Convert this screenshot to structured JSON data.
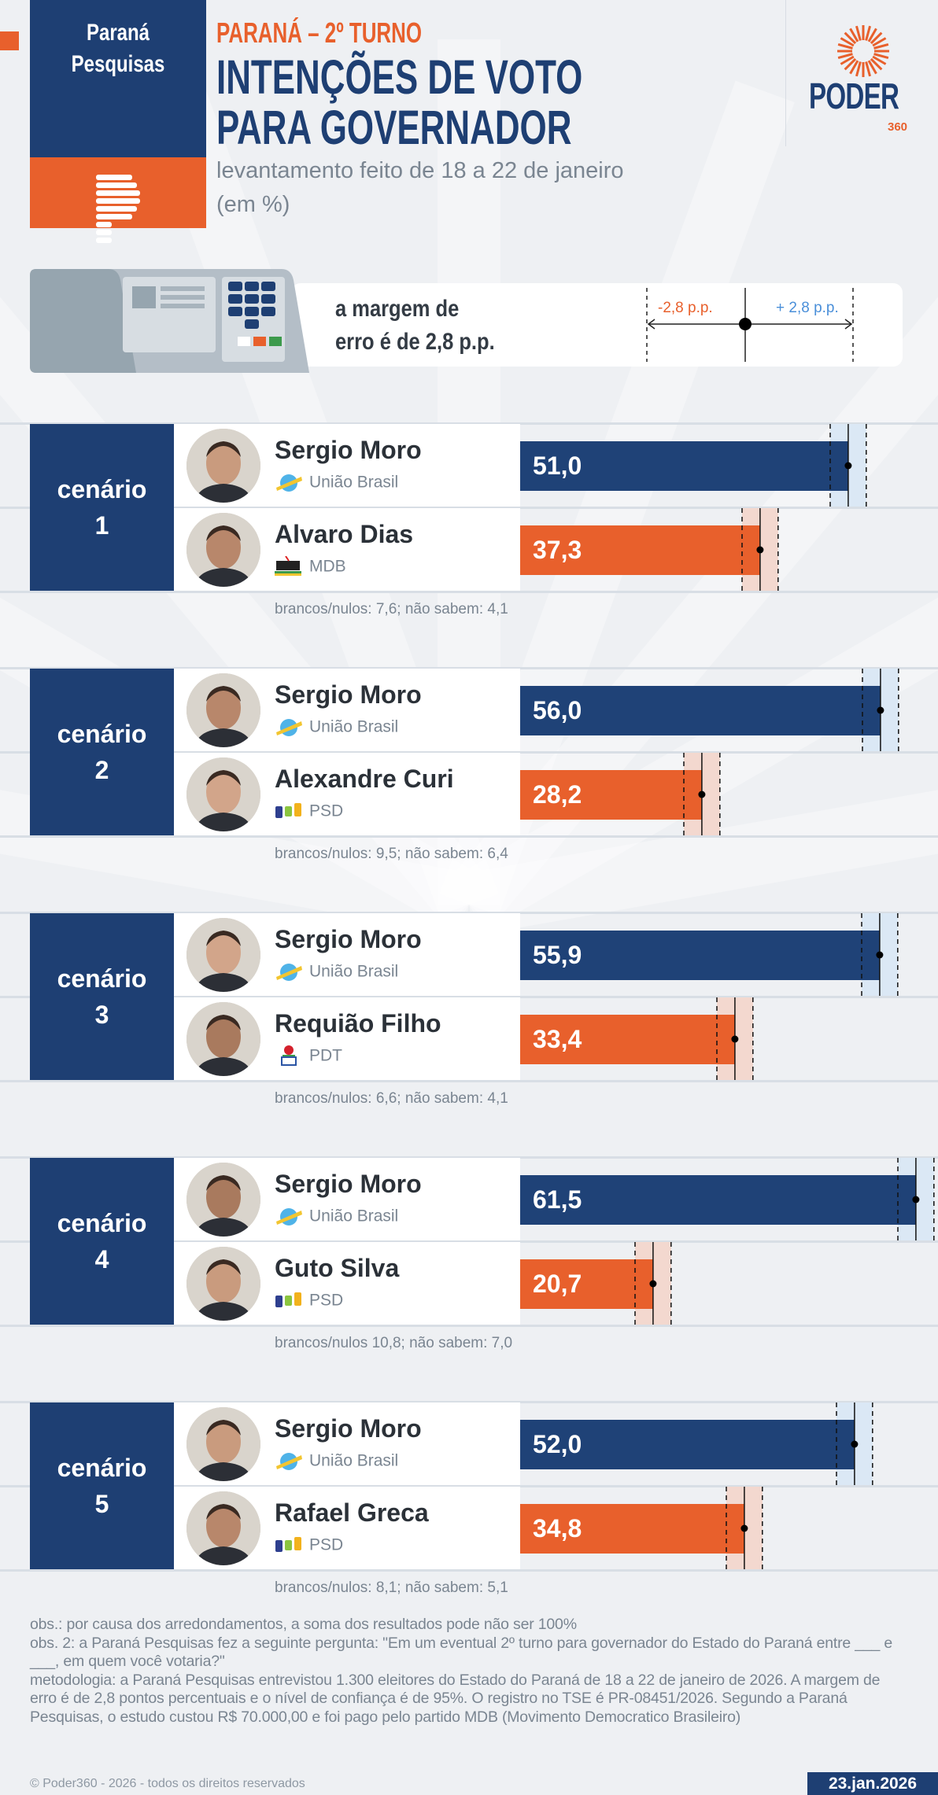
{
  "header": {
    "source_name": [
      "Paraná",
      "Pesquisas"
    ],
    "kicker": "PARANÁ – 2º TURNO",
    "title": [
      "INTENÇÕES DE VOTO",
      "PARA GOVERNADOR"
    ],
    "subtitle": [
      "levantamento feito de 18 a 22 de janeiro",
      "(em %)"
    ],
    "logo": {
      "text": "PODER",
      "sub": "360"
    }
  },
  "margin_box": {
    "text": [
      "a margem de",
      "erro é de 2,8 p.p."
    ],
    "minus_label": "-2,8 p.p.",
    "plus_label": "+ 2,8 p.p."
  },
  "chart_data": {
    "type": "bar",
    "orientation": "horizontal",
    "unit": "%",
    "margin_of_error": 2.8,
    "colors": {
      "first": "#1f4277",
      "second": "#e8602c",
      "first_band": "#dbe8f5",
      "second_band": "#f3d8cf"
    },
    "scenarios": [
      {
        "label": "cenário",
        "number": "1",
        "others": "brancos/nulos: 7,6; não sabem: 4,1",
        "candidates": [
          {
            "name": "Sergio Moro",
            "party": "União Brasil",
            "party_icon": "uniao-brasil-logo",
            "value": 51.0,
            "label": "51,0"
          },
          {
            "name": "Alvaro Dias",
            "party": "MDB",
            "party_icon": "mdb-logo",
            "value": 37.3,
            "label": "37,3"
          }
        ]
      },
      {
        "label": "cenário",
        "number": "2",
        "others": "brancos/nulos: 9,5; não sabem: 6,4",
        "candidates": [
          {
            "name": "Sergio Moro",
            "party": "União Brasil",
            "party_icon": "uniao-brasil-logo",
            "value": 56.0,
            "label": "56,0"
          },
          {
            "name": "Alexandre Curi",
            "party": "PSD",
            "party_icon": "psd-logo",
            "value": 28.2,
            "label": "28,2"
          }
        ]
      },
      {
        "label": "cenário",
        "number": "3",
        "others": "brancos/nulos: 6,6; não sabem: 4,1",
        "candidates": [
          {
            "name": "Sergio Moro",
            "party": "União Brasil",
            "party_icon": "uniao-brasil-logo",
            "value": 55.9,
            "label": "55,9"
          },
          {
            "name": "Requião Filho",
            "party": "PDT",
            "party_icon": "pdt-logo",
            "value": 33.4,
            "label": "33,4"
          }
        ]
      },
      {
        "label": "cenário",
        "number": "4",
        "others": "brancos/nulos 10,8; não sabem: 7,0",
        "candidates": [
          {
            "name": "Sergio Moro",
            "party": "União Brasil",
            "party_icon": "uniao-brasil-logo",
            "value": 61.5,
            "label": "61,5"
          },
          {
            "name": "Guto Silva",
            "party": "PSD",
            "party_icon": "psd-logo",
            "value": 20.7,
            "label": "20,7"
          }
        ]
      },
      {
        "label": "cenário",
        "number": "5",
        "others": "brancos/nulos: 8,1; não sabem: 5,1",
        "candidates": [
          {
            "name": "Sergio Moro",
            "party": "União Brasil",
            "party_icon": "uniao-brasil-logo",
            "value": 52.0,
            "label": "52,0"
          },
          {
            "name": "Rafael Greca",
            "party": "PSD",
            "party_icon": "psd-logo",
            "value": 34.8,
            "label": "34,8"
          }
        ]
      }
    ]
  },
  "footer": {
    "notes": [
      "obs.: por causa dos arredondamentos, a soma dos resultados pode não ser 100%",
      "obs. 2: a Paraná Pesquisas fez a seguinte pergunta: \"Em um eventual 2º turno para governador do Estado do Paraná entre ___ e ___, em quem você votaria?\"",
      "metodologia: a Paraná Pesquisas entrevistou 1.300 eleitores do Estado do Paraná de 18 a 22 de janeiro de 2026. A margem de erro é de 2,8 pontos percentuais e o nível de confiança é de 95%. O registro no TSE é PR-08451/2026. Segundo a Paraná Pesquisas, o estudo custou R$ 70.000,00 e foi pago pelo partido MDB (Movimento Democratico Brasileiro)"
    ],
    "copyright": "© Poder360 - 2026 - todos os direitos reservados",
    "date": "23.jan.2026"
  }
}
